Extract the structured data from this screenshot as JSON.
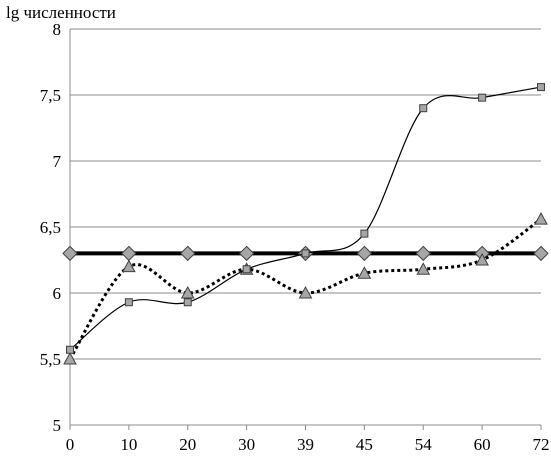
{
  "chart_data": {
    "type": "line",
    "title": "",
    "xlabel": "",
    "ylabel": "lg численности",
    "x_ticks": [
      "0",
      "10",
      "20",
      "30",
      "39",
      "45",
      "54",
      "60",
      "72"
    ],
    "y_ticks": [
      "5",
      "5,5",
      "6",
      "6,5",
      "7",
      "7,5",
      "8"
    ],
    "ylim": [
      5,
      8
    ],
    "grid": {
      "horizontal": true,
      "vertical": false
    },
    "series": [
      {
        "marker": "square",
        "line_style": "solid-thin",
        "color": "#000000",
        "marker_fill": "#a6a6a6",
        "values": [
          5.57,
          5.93,
          5.93,
          6.18,
          6.3,
          6.45,
          7.4,
          7.48,
          7.56
        ]
      },
      {
        "marker": "triangle",
        "line_style": "dotted",
        "color": "#000000",
        "marker_fill": "#a6a6a6",
        "values": [
          5.5,
          6.2,
          6.0,
          6.18,
          6.0,
          6.15,
          6.18,
          6.25,
          6.56
        ]
      },
      {
        "marker": "diamond",
        "line_style": "solid-thick",
        "color": "#000000",
        "marker_fill": "#a6a6a6",
        "values": [
          6.3,
          6.3,
          6.3,
          6.3,
          6.3,
          6.3,
          6.3,
          6.3,
          6.3
        ]
      }
    ]
  }
}
